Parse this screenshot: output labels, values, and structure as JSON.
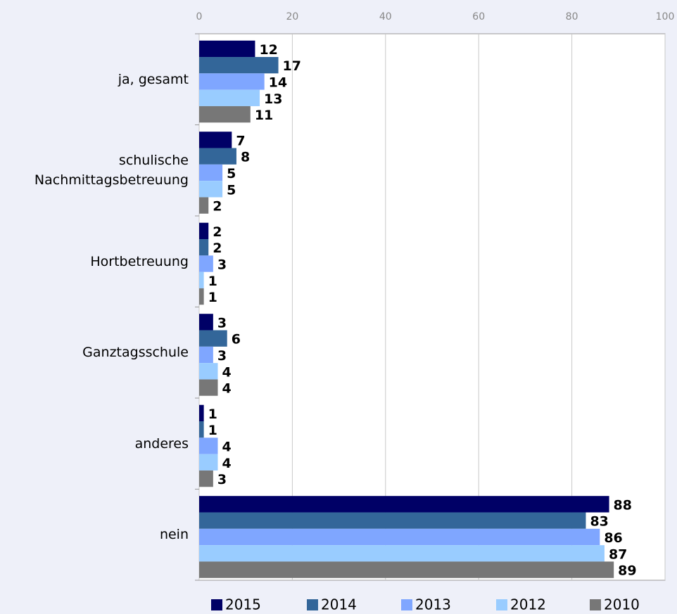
{
  "chart_data": {
    "type": "bar",
    "orientation": "horizontal",
    "categories": [
      "ja, gesamt",
      "schulische Nachmittagsbetreuung",
      "Hortbetreuung",
      "Ganztagsschule",
      "anderes",
      "nein"
    ],
    "series": [
      {
        "name": "2015",
        "color": "#000066",
        "values": [
          12,
          7,
          2,
          3,
          1,
          88
        ]
      },
      {
        "name": "2014",
        "color": "#336699",
        "values": [
          17,
          8,
          2,
          6,
          1,
          83
        ]
      },
      {
        "name": "2013",
        "color": "#7fa6ff",
        "values": [
          14,
          5,
          3,
          3,
          4,
          86
        ]
      },
      {
        "name": "2012",
        "color": "#99ccff",
        "values": [
          13,
          5,
          1,
          4,
          4,
          87
        ]
      },
      {
        "name": "2010",
        "color": "#777777",
        "values": [
          11,
          2,
          1,
          4,
          3,
          89
        ]
      }
    ],
    "xlim": [
      0,
      100
    ],
    "xticks": [
      0,
      20,
      40,
      60,
      80,
      100
    ],
    "grid": true,
    "legend": "bottom"
  }
}
